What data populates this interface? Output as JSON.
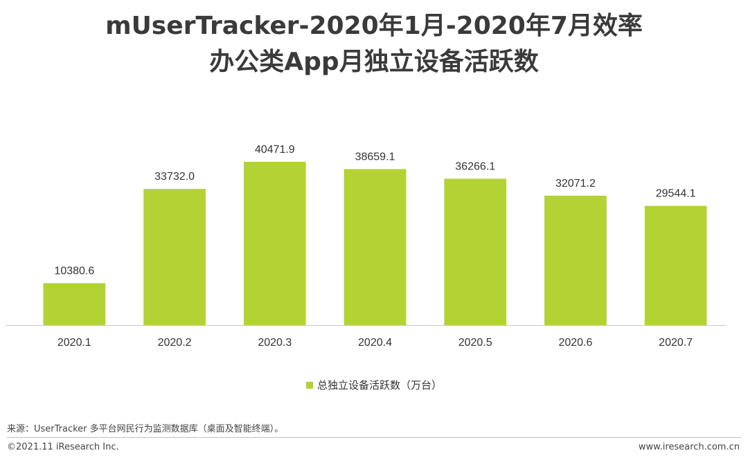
{
  "title": {
    "line1": "mUserTracker-2020年1月-2020年7月效率",
    "line2": "办公类App月独立设备活跃数"
  },
  "chart_data": {
    "type": "bar",
    "categories": [
      "2020.1",
      "2020.2",
      "2020.3",
      "2020.4",
      "2020.5",
      "2020.6",
      "2020.7"
    ],
    "series": [
      {
        "name": "总独立设备活跃数（万台）",
        "values": [
          10380.6,
          33732.0,
          40471.9,
          38659.1,
          36266.1,
          32071.2,
          29544.1
        ],
        "labels": [
          "10380.6",
          "33732.0",
          "40471.9",
          "38659.1",
          "36266.1",
          "32071.2",
          "29544.1"
        ]
      }
    ],
    "ylim": [
      0,
      48000
    ],
    "xlabel": "",
    "ylabel": "",
    "grid": false,
    "legend_position": "bottom-center",
    "bar_color": "#b3d234"
  },
  "legend": {
    "label": "总独立设备活跃数（万台）"
  },
  "footer": {
    "source": "来源：UserTracker 多平台网民行为监测数据库（桌面及智能终端）。",
    "copyright": "©2021.11 iResearch Inc.",
    "website": "www.iresearch.com.cn"
  },
  "colors": {
    "bar": "#b3d234",
    "axis": "#c8c8c8",
    "text": "#333333"
  }
}
